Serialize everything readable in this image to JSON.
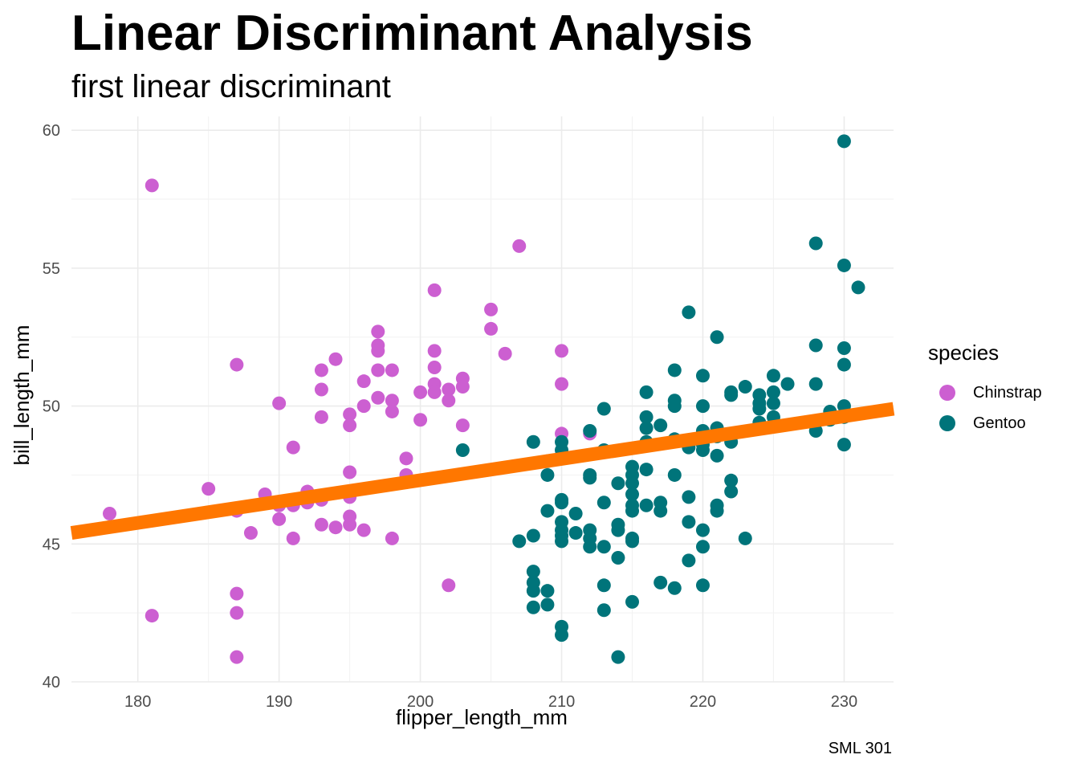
{
  "chart_data": {
    "type": "scatter",
    "title": "Linear Discriminant Analysis",
    "subtitle": "first linear discriminant",
    "caption": "SML 301",
    "xlabel": "flipper_length_mm",
    "ylabel": "bill_length_mm",
    "xlim": [
      175.3,
      233.5
    ],
    "ylim": [
      40,
      60.5
    ],
    "x_ticks": [
      180,
      190,
      200,
      210,
      220,
      230
    ],
    "y_ticks": [
      40,
      45,
      50,
      55,
      60
    ],
    "grid": true,
    "legend": {
      "title": "species",
      "position": "right"
    },
    "line": {
      "color": "#ff7700",
      "points": [
        [
          175.3,
          45.4
        ],
        [
          233.5,
          49.9
        ]
      ]
    },
    "series": [
      {
        "name": "Chinstrap",
        "color": "#cc5fd1",
        "points": [
          [
            178,
            46.1
          ],
          [
            181,
            58.0
          ],
          [
            181,
            42.4
          ],
          [
            185,
            47.0
          ],
          [
            187,
            51.5
          ],
          [
            187,
            46.2
          ],
          [
            187,
            43.2
          ],
          [
            187,
            42.5
          ],
          [
            187,
            40.9
          ],
          [
            188,
            45.4
          ],
          [
            189,
            46.8
          ],
          [
            190,
            50.1
          ],
          [
            190,
            45.9
          ],
          [
            190,
            46.4
          ],
          [
            191,
            48.5
          ],
          [
            191,
            45.2
          ],
          [
            191,
            46.4
          ],
          [
            192,
            46.9
          ],
          [
            192,
            46.5
          ],
          [
            193,
            51.3
          ],
          [
            193,
            50.6
          ],
          [
            193,
            49.6
          ],
          [
            193,
            46.6
          ],
          [
            193,
            45.7
          ],
          [
            194,
            51.7
          ],
          [
            194,
            45.6
          ],
          [
            195,
            49.7
          ],
          [
            195,
            49.3
          ],
          [
            195,
            47.6
          ],
          [
            195,
            46.7
          ],
          [
            195,
            46.0
          ],
          [
            195,
            45.7
          ],
          [
            196,
            50.9
          ],
          [
            196,
            50.0
          ],
          [
            196,
            45.5
          ],
          [
            197,
            52.7
          ],
          [
            197,
            52.2
          ],
          [
            197,
            52.0
          ],
          [
            197,
            51.3
          ],
          [
            197,
            50.3
          ],
          [
            198,
            51.3
          ],
          [
            198,
            50.2
          ],
          [
            198,
            49.8
          ],
          [
            198,
            45.2
          ],
          [
            199,
            48.1
          ],
          [
            199,
            47.5
          ],
          [
            200,
            50.5
          ],
          [
            200,
            49.5
          ],
          [
            201,
            54.2
          ],
          [
            201,
            52.0
          ],
          [
            201,
            51.4
          ],
          [
            201,
            50.8
          ],
          [
            201,
            50.5
          ],
          [
            202,
            50.6
          ],
          [
            202,
            50.2
          ],
          [
            202,
            43.5
          ],
          [
            203,
            51.0
          ],
          [
            203,
            50.7
          ],
          [
            203,
            49.3
          ],
          [
            205,
            53.5
          ],
          [
            205,
            52.8
          ],
          [
            206,
            51.9
          ],
          [
            207,
            55.8
          ],
          [
            210,
            52.0
          ],
          [
            210,
            50.8
          ],
          [
            210,
            49.0
          ],
          [
            212,
            49.0
          ]
        ]
      },
      {
        "name": "Gentoo",
        "color": "#00747a",
        "points": [
          [
            203,
            48.4
          ],
          [
            207,
            45.1
          ],
          [
            208,
            48.7
          ],
          [
            208,
            45.3
          ],
          [
            208,
            44.0
          ],
          [
            208,
            43.6
          ],
          [
            208,
            43.3
          ],
          [
            208,
            42.7
          ],
          [
            209,
            48.0
          ],
          [
            209,
            47.5
          ],
          [
            209,
            46.2
          ],
          [
            209,
            43.3
          ],
          [
            209,
            42.8
          ],
          [
            210,
            48.7
          ],
          [
            210,
            48.4
          ],
          [
            210,
            46.6
          ],
          [
            210,
            46.5
          ],
          [
            210,
            45.8
          ],
          [
            210,
            45.5
          ],
          [
            210,
            45.3
          ],
          [
            210,
            45.1
          ],
          [
            210,
            42.0
          ],
          [
            210,
            41.7
          ],
          [
            211,
            46.1
          ],
          [
            211,
            45.4
          ],
          [
            212,
            49.1
          ],
          [
            212,
            47.5
          ],
          [
            212,
            47.4
          ],
          [
            212,
            45.5
          ],
          [
            212,
            45.2
          ],
          [
            212,
            44.9
          ],
          [
            213,
            49.9
          ],
          [
            213,
            48.4
          ],
          [
            213,
            46.5
          ],
          [
            213,
            44.9
          ],
          [
            213,
            43.5
          ],
          [
            213,
            42.6
          ],
          [
            214,
            47.2
          ],
          [
            214,
            45.7
          ],
          [
            214,
            45.5
          ],
          [
            214,
            44.5
          ],
          [
            214,
            40.9
          ],
          [
            215,
            47.8
          ],
          [
            215,
            47.5
          ],
          [
            215,
            47.2
          ],
          [
            215,
            46.8
          ],
          [
            215,
            46.4
          ],
          [
            215,
            46.2
          ],
          [
            215,
            45.2
          ],
          [
            215,
            45.1
          ],
          [
            215,
            42.9
          ],
          [
            216,
            50.5
          ],
          [
            216,
            49.6
          ],
          [
            216,
            49.2
          ],
          [
            216,
            48.7
          ],
          [
            216,
            47.7
          ],
          [
            216,
            46.4
          ],
          [
            217,
            49.3
          ],
          [
            217,
            46.5
          ],
          [
            217,
            46.2
          ],
          [
            217,
            43.6
          ],
          [
            218,
            51.3
          ],
          [
            218,
            50.2
          ],
          [
            218,
            50.0
          ],
          [
            218,
            48.8
          ],
          [
            218,
            47.5
          ],
          [
            218,
            43.4
          ],
          [
            219,
            53.4
          ],
          [
            219,
            48.6
          ],
          [
            219,
            48.5
          ],
          [
            219,
            46.7
          ],
          [
            219,
            45.8
          ],
          [
            219,
            44.4
          ],
          [
            220,
            51.1
          ],
          [
            220,
            50.0
          ],
          [
            220,
            49.1
          ],
          [
            220,
            48.6
          ],
          [
            220,
            48.4
          ],
          [
            220,
            45.5
          ],
          [
            220,
            44.9
          ],
          [
            220,
            43.5
          ],
          [
            221,
            52.5
          ],
          [
            221,
            49.2
          ],
          [
            221,
            48.9
          ],
          [
            221,
            48.2
          ],
          [
            221,
            46.4
          ],
          [
            221,
            46.2
          ],
          [
            222,
            50.5
          ],
          [
            222,
            50.4
          ],
          [
            222,
            48.7
          ],
          [
            222,
            47.3
          ],
          [
            222,
            46.9
          ],
          [
            223,
            50.7
          ],
          [
            223,
            45.2
          ],
          [
            224,
            50.4
          ],
          [
            224,
            50.1
          ],
          [
            224,
            49.9
          ],
          [
            224,
            49.4
          ],
          [
            225,
            51.1
          ],
          [
            225,
            50.5
          ],
          [
            225,
            50.1
          ],
          [
            225,
            49.6
          ],
          [
            226,
            50.8
          ],
          [
            228,
            55.9
          ],
          [
            228,
            52.2
          ],
          [
            228,
            50.8
          ],
          [
            228,
            49.4
          ],
          [
            228,
            49.1
          ],
          [
            229,
            49.8
          ],
          [
            229,
            49.5
          ],
          [
            230,
            59.6
          ],
          [
            230,
            55.1
          ],
          [
            230,
            52.1
          ],
          [
            230,
            51.5
          ],
          [
            230,
            50.0
          ],
          [
            230,
            49.6
          ],
          [
            230,
            48.6
          ],
          [
            231,
            54.3
          ]
        ]
      }
    ]
  }
}
